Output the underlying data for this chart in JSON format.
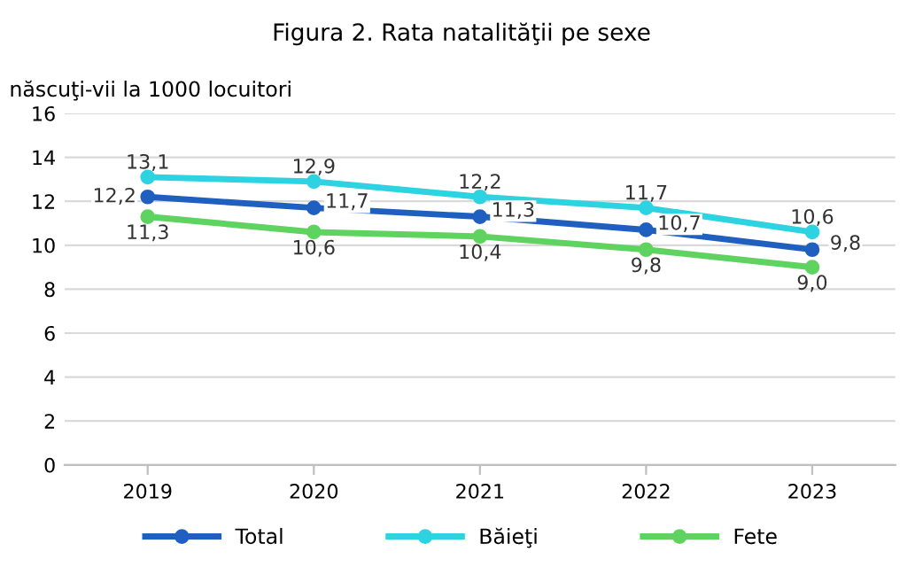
{
  "chart_data": {
    "type": "line",
    "title": "Figura 2. Rata natalităţii pe sexe",
    "ylabel": "născuţi-vii la 1000 locuitori",
    "categories": [
      "2019",
      "2020",
      "2021",
      "2022",
      "2023"
    ],
    "series": [
      {
        "name": "Total",
        "color": "#1f5fbf",
        "values": [
          12.2,
          11.7,
          11.3,
          10.7,
          9.8
        ],
        "value_labels": [
          "12,2",
          "11,7",
          "11,3",
          "10,7",
          "9,8"
        ]
      },
      {
        "name": "Băieţi",
        "color": "#2dd3e0",
        "values": [
          13.1,
          12.9,
          12.2,
          11.7,
          10.6
        ],
        "value_labels": [
          "13,1",
          "12,9",
          "12,2",
          "11,7",
          "10,6"
        ]
      },
      {
        "name": "Fete",
        "color": "#5fd35f",
        "values": [
          11.3,
          10.6,
          10.4,
          9.8,
          9.0
        ],
        "value_labels": [
          "11,3",
          "10,6",
          "10,4",
          "9,8",
          "9,0"
        ]
      }
    ],
    "ylim": [
      0,
      16
    ],
    "yticks": [
      0,
      2,
      4,
      6,
      8,
      10,
      12,
      14,
      16
    ],
    "grid": "y",
    "legend": "bottom",
    "marker": "circle",
    "line_style": "solid"
  }
}
